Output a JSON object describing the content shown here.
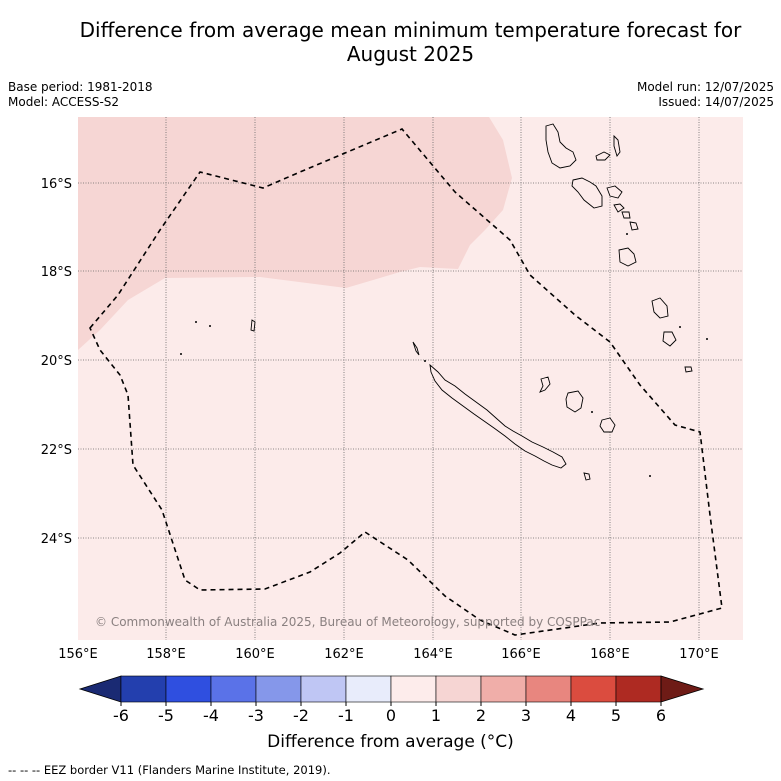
{
  "title_line1": "Difference from average mean minimum temperature forecast for",
  "title_line2": "August 2025",
  "base_period": "Base period: 1981-2018",
  "model": "Model: ACCESS-S2",
  "model_run": "Model run: 12/07/2025",
  "issued": "Issued: 14/07/2025",
  "lat_labels": [
    "16°S",
    "18°S",
    "20°S",
    "22°S",
    "24°S"
  ],
  "lon_labels": [
    "156°E",
    "158°E",
    "160°E",
    "162°E",
    "164°E",
    "166°E",
    "168°E",
    "170°E"
  ],
  "copyright": "© Commonwealth of Australia 2025, Bureau of Meteorology, supported by COSPPac",
  "colorbar": {
    "ticks": [
      "-6",
      "-5",
      "-4",
      "-3",
      "-2",
      "-1",
      "0",
      "1",
      "2",
      "3",
      "4",
      "5",
      "6"
    ],
    "colors": [
      "#233fae",
      "#2f4fe0",
      "#5a72e8",
      "#8597ea",
      "#bfc6f4",
      "#e8ecfb",
      "#fdeceb",
      "#f6d5d3",
      "#f0aea9",
      "#e8867f",
      "#db4c3f",
      "#ae2a22"
    ],
    "under_color": "#1a2a73",
    "over_color": "#6e1b16",
    "label": "Difference from average (°C)"
  },
  "map_fill": {
    "range_0_to_1": "#fcebea",
    "range_1_to_2": "#f6d6d4"
  },
  "legend_footer": "--  --  -- EEZ border V11 (Flanders Marine Institute, 2019)."
}
